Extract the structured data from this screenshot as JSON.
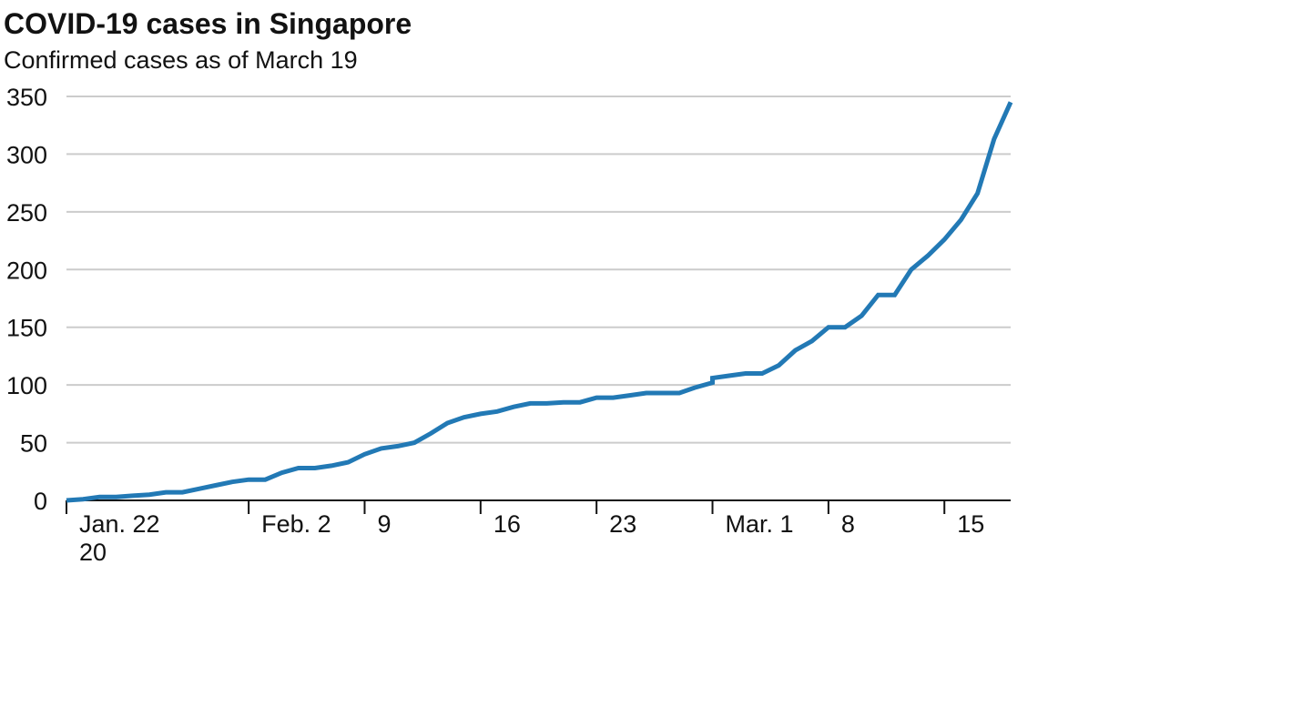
{
  "colors": {
    "line": "#2279b5",
    "grid": "#cccccc",
    "axis": "#121212",
    "text": "#121212"
  },
  "chart_data": {
    "type": "line",
    "title": "COVID-19 cases in Singapore",
    "subtitle": "Confirmed cases as of March 19",
    "xlabel": "",
    "ylabel": "",
    "ylim": [
      0,
      350
    ],
    "xlim_days": [
      0,
      57
    ],
    "grid": true,
    "legend": "none",
    "yticks": [
      {
        "value": 0,
        "label": "0"
      },
      {
        "value": 50,
        "label": "50"
      },
      {
        "value": 100,
        "label": "100"
      },
      {
        "value": 150,
        "label": "150"
      },
      {
        "value": 200,
        "label": "200"
      },
      {
        "value": 250,
        "label": "250"
      },
      {
        "value": 300,
        "label": "300"
      },
      {
        "value": 350,
        "label": "350"
      }
    ],
    "xticks": [
      {
        "day": 0,
        "label": "Jan. 22",
        "label2": "20"
      },
      {
        "day": 11,
        "label": "Feb. 2"
      },
      {
        "day": 18,
        "label": "9"
      },
      {
        "day": 25,
        "label": "16"
      },
      {
        "day": 32,
        "label": "23"
      },
      {
        "day": 39,
        "label": "Mar. 1"
      },
      {
        "day": 46,
        "label": "8"
      },
      {
        "day": 53,
        "label": "15"
      }
    ],
    "series": [
      {
        "name": "Confirmed cases",
        "points": [
          {
            "day": 0,
            "date": "Jan. 22",
            "value": 0
          },
          {
            "day": 1,
            "date": "Jan. 23",
            "value": 1
          },
          {
            "day": 2,
            "date": "Jan. 24",
            "value": 3
          },
          {
            "day": 3,
            "date": "Jan. 25",
            "value": 3
          },
          {
            "day": 4,
            "date": "Jan. 26",
            "value": 4
          },
          {
            "day": 5,
            "date": "Jan. 27",
            "value": 5
          },
          {
            "day": 6,
            "date": "Jan. 28",
            "value": 7
          },
          {
            "day": 7,
            "date": "Jan. 29",
            "value": 7
          },
          {
            "day": 8,
            "date": "Jan. 30",
            "value": 10
          },
          {
            "day": 9,
            "date": "Jan. 31",
            "value": 13
          },
          {
            "day": 10,
            "date": "Feb. 1",
            "value": 16
          },
          {
            "day": 11,
            "date": "Feb. 2",
            "value": 18
          },
          {
            "day": 12,
            "date": "Feb. 3",
            "value": 18
          },
          {
            "day": 13,
            "date": "Feb. 4",
            "value": 24
          },
          {
            "day": 14,
            "date": "Feb. 5",
            "value": 28
          },
          {
            "day": 15,
            "date": "Feb. 6",
            "value": 28
          },
          {
            "day": 16,
            "date": "Feb. 7",
            "value": 30
          },
          {
            "day": 17,
            "date": "Feb. 8",
            "value": 33
          },
          {
            "day": 18,
            "date": "Feb. 9",
            "value": 40
          },
          {
            "day": 19,
            "date": "Feb. 10",
            "value": 45
          },
          {
            "day": 20,
            "date": "Feb. 11",
            "value": 47
          },
          {
            "day": 21,
            "date": "Feb. 12",
            "value": 50
          },
          {
            "day": 22,
            "date": "Feb. 13",
            "value": 58
          },
          {
            "day": 23,
            "date": "Feb. 14",
            "value": 67
          },
          {
            "day": 24,
            "date": "Feb. 15",
            "value": 72
          },
          {
            "day": 25,
            "date": "Feb. 16",
            "value": 75
          },
          {
            "day": 26,
            "date": "Feb. 17",
            "value": 77
          },
          {
            "day": 27,
            "date": "Feb. 18",
            "value": 81
          },
          {
            "day": 28,
            "date": "Feb. 19",
            "value": 84
          },
          {
            "day": 29,
            "date": "Feb. 20",
            "value": 84
          },
          {
            "day": 30,
            "date": "Feb. 21",
            "value": 85
          },
          {
            "day": 31,
            "date": "Feb. 22",
            "value": 85
          },
          {
            "day": 32,
            "date": "Feb. 23",
            "value": 89
          },
          {
            "day": 33,
            "date": "Feb. 24",
            "value": 89
          },
          {
            "day": 34,
            "date": "Feb. 25",
            "value": 91
          },
          {
            "day": 35,
            "date": "Feb. 26",
            "value": 93
          },
          {
            "day": 36,
            "date": "Feb. 27",
            "value": 93
          },
          {
            "day": 37,
            "date": "Feb. 28",
            "value": 93
          },
          {
            "day": 38,
            "date": "Feb. 29",
            "value": 98
          },
          {
            "day": 39,
            "date": "Mar. 1",
            "value": 102
          },
          {
            "day": 39,
            "date": "Mar. 1",
            "value": 106
          },
          {
            "day": 40,
            "date": "Mar. 2",
            "value": 108
          },
          {
            "day": 41,
            "date": "Mar. 3",
            "value": 110
          },
          {
            "day": 42,
            "date": "Mar. 4",
            "value": 110
          },
          {
            "day": 43,
            "date": "Mar. 5",
            "value": 117
          },
          {
            "day": 44,
            "date": "Mar. 6",
            "value": 130
          },
          {
            "day": 45,
            "date": "Mar. 7",
            "value": 138
          },
          {
            "day": 46,
            "date": "Mar. 8",
            "value": 150
          },
          {
            "day": 47,
            "date": "Mar. 9",
            "value": 150
          },
          {
            "day": 48,
            "date": "Mar. 10",
            "value": 160
          },
          {
            "day": 49,
            "date": "Mar. 11",
            "value": 178
          },
          {
            "day": 50,
            "date": "Mar. 12",
            "value": 178
          },
          {
            "day": 51,
            "date": "Mar. 13",
            "value": 200
          },
          {
            "day": 52,
            "date": "Mar. 14",
            "value": 212
          },
          {
            "day": 53,
            "date": "Mar. 15",
            "value": 226
          },
          {
            "day": 54,
            "date": "Mar. 16",
            "value": 243
          },
          {
            "day": 55,
            "date": "Mar. 17",
            "value": 266
          },
          {
            "day": 56,
            "date": "Mar. 18",
            "value": 313
          },
          {
            "day": 57,
            "date": "Mar. 19",
            "value": 345
          }
        ]
      }
    ]
  }
}
